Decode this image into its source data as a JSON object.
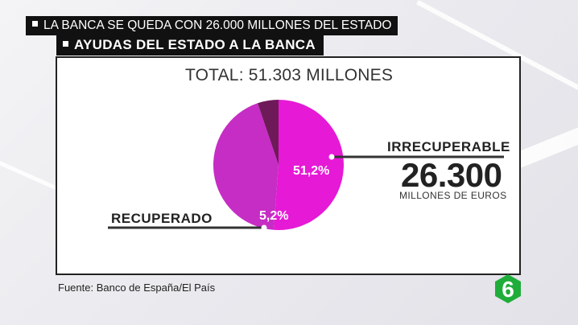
{
  "header": {
    "strap_top": "LA BANCA SE QUEDA CON 26.000 MILLONES DEL ESTADO",
    "strap_main": "AYUDAS DEL ESTADO A LA BANCA"
  },
  "chart_data": {
    "type": "pie",
    "title": "TOTAL: 51.303 MILLONES",
    "slices": [
      {
        "name": "IRRECUPERABLE",
        "label": "51,2%",
        "value": 51.2,
        "color": "#e619d6"
      },
      {
        "name": "",
        "label": "",
        "value": 43.6,
        "color": "#c62dc4"
      },
      {
        "name": "RECUPERADO",
        "label": "5,2%",
        "value": 5.2,
        "color": "#6e1a58"
      }
    ],
    "annotation": {
      "label": "IRRECUPERABLE",
      "value": "26.300",
      "unit": "MILLONES DE EUROS"
    }
  },
  "footer": {
    "source": "Fuente: Banco de España/El País",
    "logo_text": "6",
    "logo_color": "#1fad3a"
  }
}
